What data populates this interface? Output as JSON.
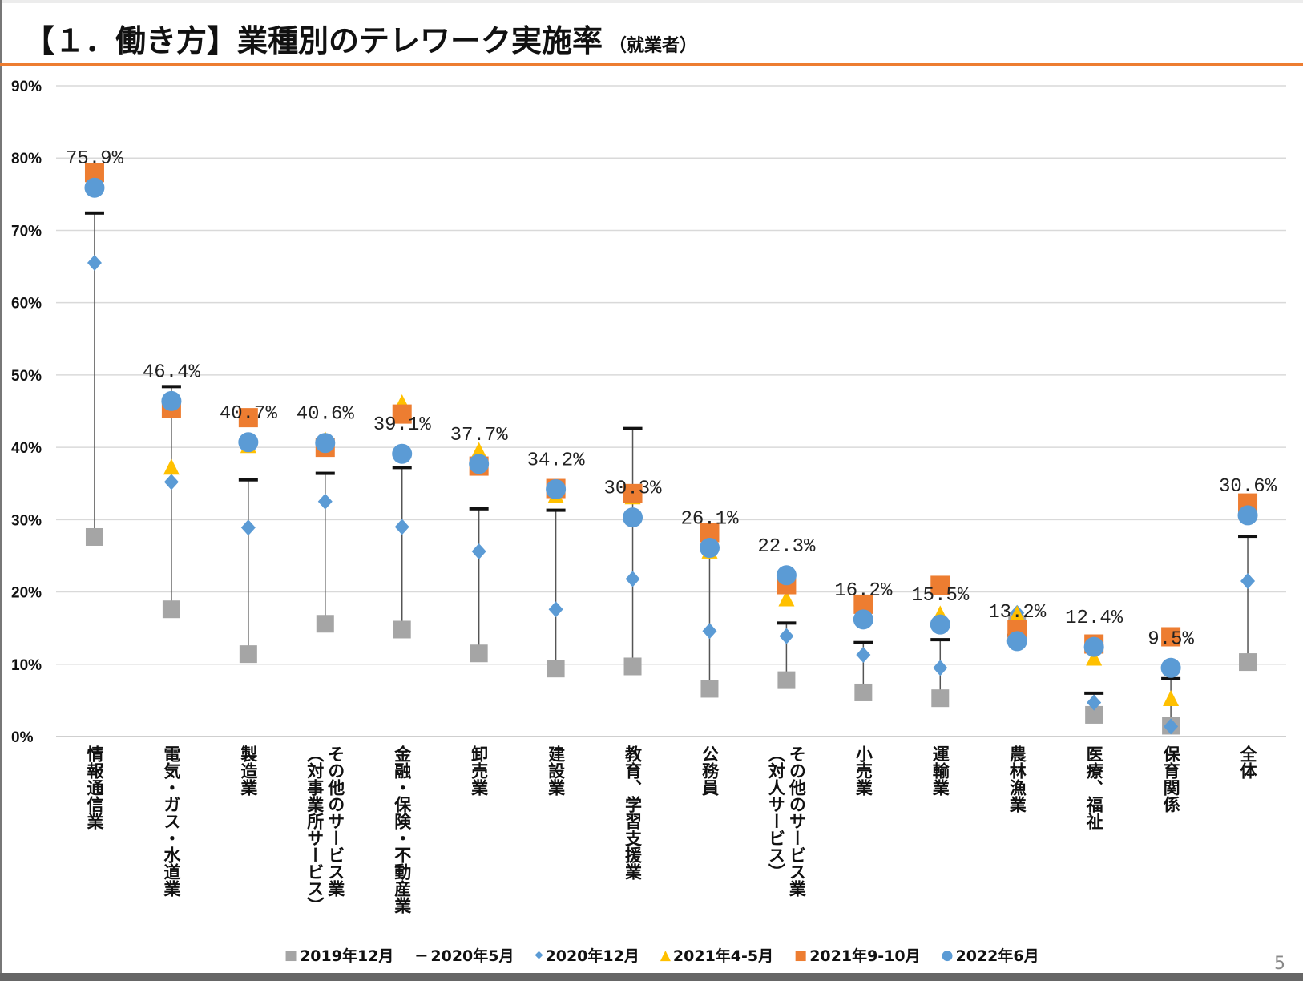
{
  "title": "【１．働き方】業種別のテレワーク実施率",
  "subtitle": "（就業者）",
  "page_number": "5",
  "chart_data": {
    "type": "scatter",
    "title": "【１．働き方】業種別のテレワーク実施率（就業者）",
    "ylim": [
      0,
      90
    ],
    "yticks": [
      "0%",
      "10%",
      "20%",
      "30%",
      "40%",
      "50%",
      "60%",
      "70%",
      "80%",
      "90%"
    ],
    "grid": true,
    "legend_position": "bottom",
    "categories": [
      "情報通信業",
      "電気・ガス・水道業",
      "製造業",
      "その他のサービス業\n（対事業所サービス）",
      "金融・保険・不動産業",
      "卸売業",
      "建設業",
      "教育、学習支援業",
      "公務員",
      "その他のサービス業\n（対人サービス）",
      "小売業",
      "運輸業",
      "農林漁業",
      "医療、福祉",
      "保育関係",
      "全体"
    ],
    "series": [
      {
        "name": "2019年12月",
        "marker": "square",
        "color": "#a5a5a5",
        "values": [
          27.6,
          17.6,
          11.4,
          15.6,
          14.8,
          11.5,
          9.4,
          9.7,
          6.6,
          7.8,
          6.1,
          5.3,
          15.6,
          3.0,
          1.5,
          10.3
        ]
      },
      {
        "name": "2020年5月",
        "marker": "dash",
        "color": "#111111",
        "values": [
          72.4,
          48.4,
          35.5,
          36.4,
          37.2,
          31.5,
          31.3,
          42.6,
          26.0,
          15.7,
          13.0,
          13.4,
          14.0,
          6.0,
          8.0,
          27.7
        ]
      },
      {
        "name": "2020年12月",
        "marker": "diamond",
        "color": "#5b9bd5",
        "values": [
          65.5,
          35.2,
          28.9,
          32.5,
          29.0,
          25.6,
          17.6,
          21.8,
          14.6,
          13.9,
          11.3,
          9.5,
          17.1,
          4.7,
          1.4,
          21.5
        ]
      },
      {
        "name": "2021年4-5月",
        "marker": "triangle",
        "color": "#ffc000",
        "values": [
          77.0,
          37.1,
          40.1,
          40.9,
          46.0,
          39.4,
          33.2,
          33.0,
          25.5,
          18.9,
          17.0,
          16.8,
          16.8,
          10.7,
          5.1,
          31.0
        ]
      },
      {
        "name": "2021年9-10月",
        "marker": "square",
        "color": "#ed7d31",
        "values": [
          78.0,
          45.4,
          44.1,
          40.0,
          44.6,
          37.4,
          34.3,
          33.6,
          28.2,
          21.0,
          18.3,
          20.9,
          14.8,
          12.8,
          13.8,
          32.3
        ]
      },
      {
        "name": "2022年6月",
        "marker": "circle",
        "color": "#5b9bd5",
        "values": [
          75.9,
          46.4,
          40.7,
          40.6,
          39.1,
          37.7,
          34.2,
          30.3,
          26.1,
          22.3,
          16.2,
          15.5,
          13.2,
          12.4,
          9.5,
          30.6
        ]
      }
    ],
    "data_labels": [
      "75.9%",
      "46.4%",
      "40.7%",
      "40.6%",
      "39.1%",
      "37.7%",
      "34.2%",
      "30.3%",
      "26.1%",
      "22.3%",
      "16.2%",
      "15.5%",
      "13.2%",
      "12.4%",
      "9.5%",
      "30.6%"
    ]
  }
}
